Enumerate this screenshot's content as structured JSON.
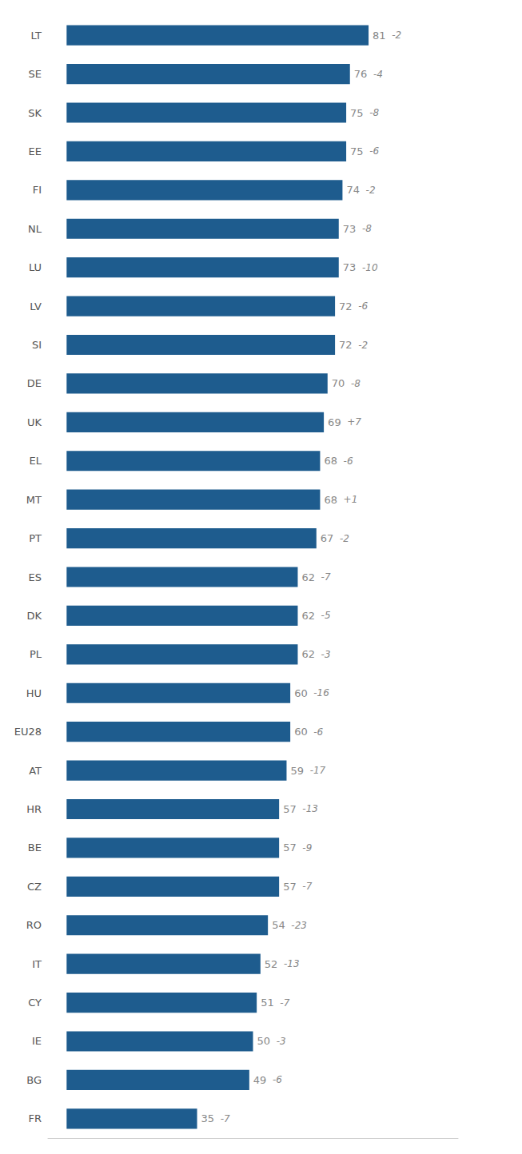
{
  "chart_data": {
    "type": "bar",
    "orientation": "horizontal",
    "categories": [
      "LT",
      "SE",
      "SK",
      "EE",
      "FI",
      "NL",
      "LU",
      "LV",
      "SI",
      "DE",
      "UK",
      "EL",
      "MT",
      "PT",
      "ES",
      "DK",
      "PL",
      "HU",
      "EU28",
      "AT",
      "HR",
      "BE",
      "CZ",
      "RO",
      "IT",
      "CY",
      "IE",
      "BG",
      "FR"
    ],
    "values": [
      81,
      76,
      75,
      75,
      74,
      73,
      73,
      72,
      72,
      70,
      69,
      68,
      68,
      67,
      62,
      62,
      62,
      60,
      60,
      59,
      57,
      57,
      57,
      54,
      52,
      51,
      50,
      49,
      35
    ],
    "annotations": [
      "-2",
      "-4",
      "-8",
      "-6",
      "-2",
      "-8",
      "-10",
      "-6",
      "-2",
      "-8",
      "+7",
      "-6",
      "+1",
      "-2",
      "-7",
      "-5",
      "-3",
      "-16",
      "-6",
      "-17",
      "-13",
      "-9",
      "-7",
      "-23",
      "-13",
      "-7",
      "-3",
      "-6",
      "-7"
    ],
    "color": "#1e5c8e",
    "xlim": [
      -5,
      105
    ],
    "grid": false,
    "data_labels": true,
    "tick_labels": "y"
  }
}
